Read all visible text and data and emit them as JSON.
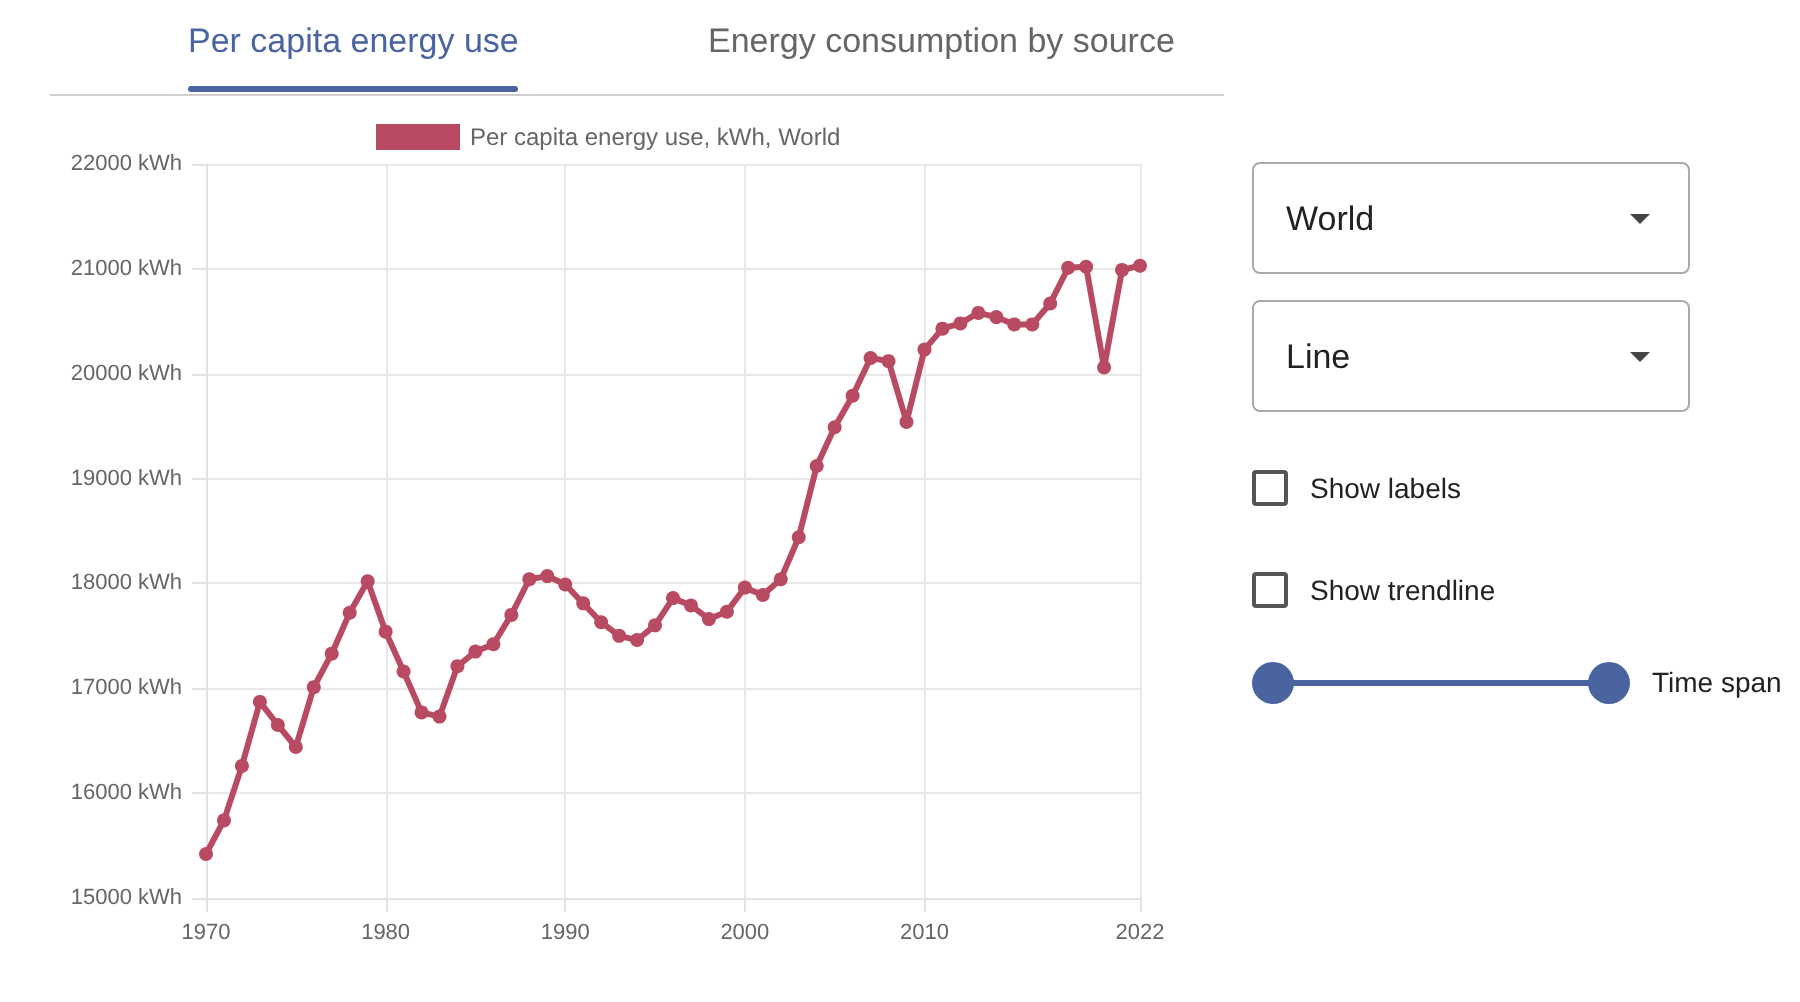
{
  "chart_data": {
    "type": "line",
    "title": "Per capita energy use",
    "annotations": [
      "Energy consumption by source",
      "World",
      "Line",
      "Show labels",
      "Show trendline",
      "Time span"
    ],
    "x": [
      1970,
      1971,
      1972,
      1973,
      1974,
      1975,
      1976,
      1977,
      1978,
      1979,
      1980,
      1981,
      1982,
      1983,
      1984,
      1985,
      1986,
      1987,
      1988,
      1989,
      1990,
      1991,
      1992,
      1993,
      1994,
      1995,
      1996,
      1997,
      1998,
      1999,
      2000,
      2001,
      2002,
      2003,
      2004,
      2005,
      2006,
      2007,
      2008,
      2009,
      2010,
      2011,
      2012,
      2013,
      2014,
      2015,
      2016,
      2017,
      2018,
      2019,
      2020,
      2021,
      2022
    ],
    "series": [
      {
        "name": "Per capita energy use, kWh, World",
        "color": "#b84a62",
        "values": [
          15420,
          15740,
          16260,
          16870,
          16650,
          16440,
          17010,
          17330,
          17720,
          18020,
          17540,
          17160,
          16770,
          16730,
          17210,
          17350,
          17420,
          17700,
          18040,
          18070,
          17990,
          17810,
          17630,
          17500,
          17460,
          17600,
          17860,
          17790,
          17660,
          17730,
          17960,
          17890,
          18040,
          18440,
          19120,
          19490,
          19790,
          20150,
          20120,
          19540,
          20230,
          20430,
          20480,
          20580,
          20540,
          20470,
          20470,
          20670,
          21010,
          21020,
          20060,
          20990,
          21030
        ]
      }
    ],
    "xlim": [
      1970,
      2022
    ],
    "xticks": [
      1970,
      1980,
      1990,
      2000,
      2010,
      2022
    ],
    "ylim": [
      15000,
      22000
    ],
    "yticks": [
      {
        "value": 15000,
        "label": "15000 kWh"
      },
      {
        "value": 16000,
        "label": "16000 kWh"
      },
      {
        "value": 17000,
        "label": "17000 kWh"
      },
      {
        "value": 18000,
        "label": "18000 kWh"
      },
      {
        "value": 19000,
        "label": "19000 kWh"
      },
      {
        "value": 20000,
        "label": "20000 kWh"
      },
      {
        "value": 21000,
        "label": "21000 kWh"
      },
      {
        "value": 22000,
        "label": "22000 kWh"
      }
    ],
    "grid": true,
    "legend": "top",
    "marker": "circle",
    "line_style": "solid"
  }
}
